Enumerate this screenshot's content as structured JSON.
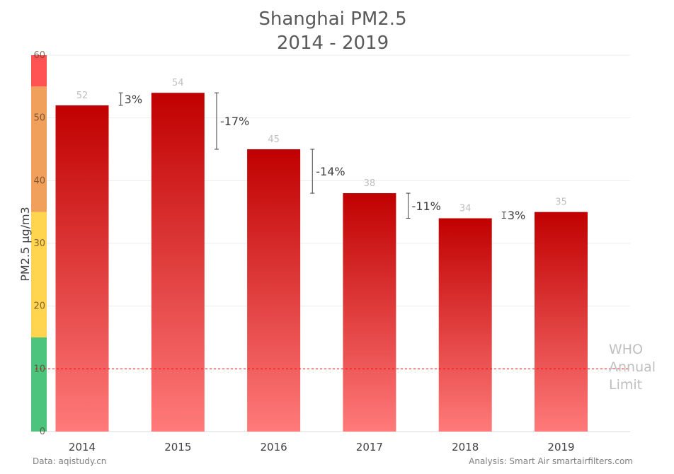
{
  "chart_data": {
    "type": "bar",
    "title": "Shanghai PM2.5",
    "subtitle": "2014 - 2019",
    "ylabel": "PM2.5  µg/m3",
    "xlabel": "",
    "ylim": [
      0,
      60
    ],
    "yticks": [
      "0",
      "10",
      "20",
      "30",
      "40",
      "50",
      "60"
    ],
    "categories": [
      "2014",
      "2015",
      "2016",
      "2017",
      "2018",
      "2019"
    ],
    "values": [
      52,
      54,
      45,
      38,
      34,
      35
    ],
    "value_labels": [
      "52",
      "54",
      "45",
      "38",
      "34",
      "35"
    ],
    "changes": [
      {
        "from": 0,
        "to": 1,
        "label": "3%"
      },
      {
        "from": 1,
        "to": 2,
        "label": "-17%"
      },
      {
        "from": 2,
        "to": 3,
        "label": "-14%"
      },
      {
        "from": 3,
        "to": 4,
        "label": "-11%"
      },
      {
        "from": 4,
        "to": 5,
        "label": "3%"
      }
    ],
    "reference_line": {
      "value": 10,
      "label": [
        "WHO",
        "Annual",
        "Limit"
      ],
      "color": "#ff0000"
    },
    "aqi_bands": [
      {
        "from": 0,
        "to": 15,
        "color": "#4dc47d"
      },
      {
        "from": 15,
        "to": 35,
        "color": "#ffd54f"
      },
      {
        "from": 35,
        "to": 55,
        "color": "#f0a05a"
      },
      {
        "from": 55,
        "to": 60,
        "color": "#ff5252"
      }
    ],
    "bar_color_top": "#c00000",
    "bar_color_bottom": "#ff7a7a",
    "grid": true,
    "legend": "none"
  },
  "footer": {
    "source": "Data: aqistudy.cn",
    "analysis": "Analysis: Smart Air smartairfilters.com"
  }
}
